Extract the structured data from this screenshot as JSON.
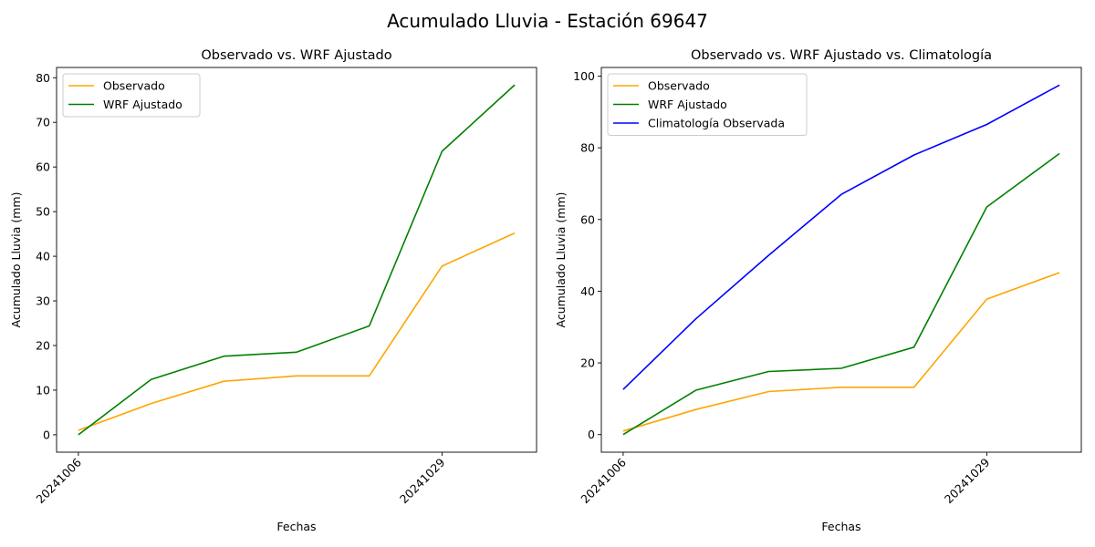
{
  "figure_title": "Acumulado Lluvia - Estación 69647",
  "chart_data": [
    {
      "type": "line",
      "title": "Observado vs. WRF Ajustado",
      "xlabel": "Fechas",
      "ylabel": "Acumulado Lluvia (mm)",
      "x_index": [
        0,
        1,
        2,
        3,
        4,
        5,
        6
      ],
      "xticks": [
        {
          "index": 0,
          "label": "20241006"
        },
        {
          "index": 5,
          "label": "20241029"
        }
      ],
      "yticks": [
        0,
        10,
        20,
        30,
        40,
        50,
        60,
        70,
        80
      ],
      "xlim": [
        -0.3,
        6.3
      ],
      "ylim": [
        -3.9,
        82.3
      ],
      "legend_position": "upper-left",
      "series": [
        {
          "name": "Observado",
          "color": "#FFA500",
          "values": [
            1.0,
            7.0,
            12.0,
            13.2,
            13.2,
            37.8,
            45.2
          ]
        },
        {
          "name": "WRF Ajustado",
          "color": "#008000",
          "values": [
            0.0,
            12.4,
            17.6,
            18.5,
            24.4,
            63.5,
            78.4
          ]
        }
      ]
    },
    {
      "type": "line",
      "title": "Observado vs. WRF Ajustado vs. Climatología",
      "xlabel": "Fechas",
      "ylabel": "Acumulado Lluvia (mm)",
      "x_index": [
        0,
        1,
        2,
        3,
        4,
        5,
        6
      ],
      "xticks": [
        {
          "index": 0,
          "label": "20241006"
        },
        {
          "index": 5,
          "label": "20241029"
        }
      ],
      "yticks": [
        0,
        20,
        40,
        60,
        80,
        100
      ],
      "xlim": [
        -0.3,
        6.3
      ],
      "ylim": [
        -4.9,
        102.4
      ],
      "legend_position": "upper-left",
      "series": [
        {
          "name": "Observado",
          "color": "#FFA500",
          "values": [
            1.0,
            7.0,
            12.0,
            13.2,
            13.2,
            37.8,
            45.2
          ]
        },
        {
          "name": "WRF Ajustado",
          "color": "#008000",
          "values": [
            0.0,
            12.4,
            17.6,
            18.5,
            24.4,
            63.5,
            78.4
          ]
        },
        {
          "name": "Climatología Observada",
          "color": "#0000FF",
          "values": [
            12.6,
            32.3,
            50.0,
            67.0,
            78.0,
            86.5,
            97.5
          ]
        }
      ]
    }
  ]
}
